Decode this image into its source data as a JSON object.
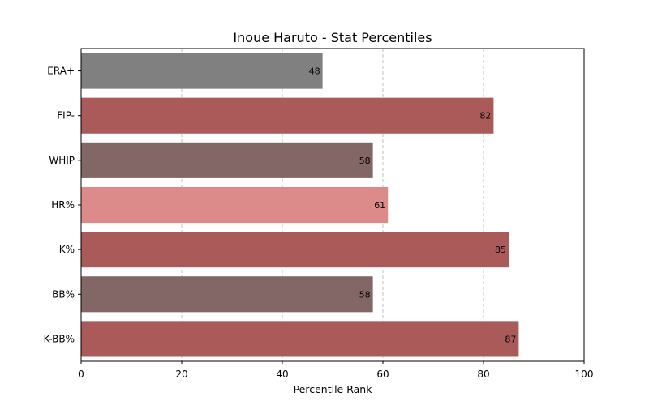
{
  "chart_data": {
    "type": "bar",
    "orientation": "horizontal",
    "title": "Inoue Haruto - Stat Percentiles",
    "xlabel": "Percentile Rank",
    "ylabel": "",
    "xlim": [
      0,
      100
    ],
    "xticks": [
      0,
      20,
      40,
      60,
      80,
      100
    ],
    "grid": "x-dashed",
    "categories": [
      "ERA+",
      "FIP-",
      "WHIP",
      "HR%",
      "K%",
      "BB%",
      "K-BB%"
    ],
    "values": [
      48,
      82,
      58,
      61,
      85,
      58,
      87
    ],
    "colors": [
      "#808080",
      "#ab5a5a",
      "#836666",
      "#dd8a8a",
      "#ab5a5a",
      "#836666",
      "#ab5a5a"
    ]
  }
}
